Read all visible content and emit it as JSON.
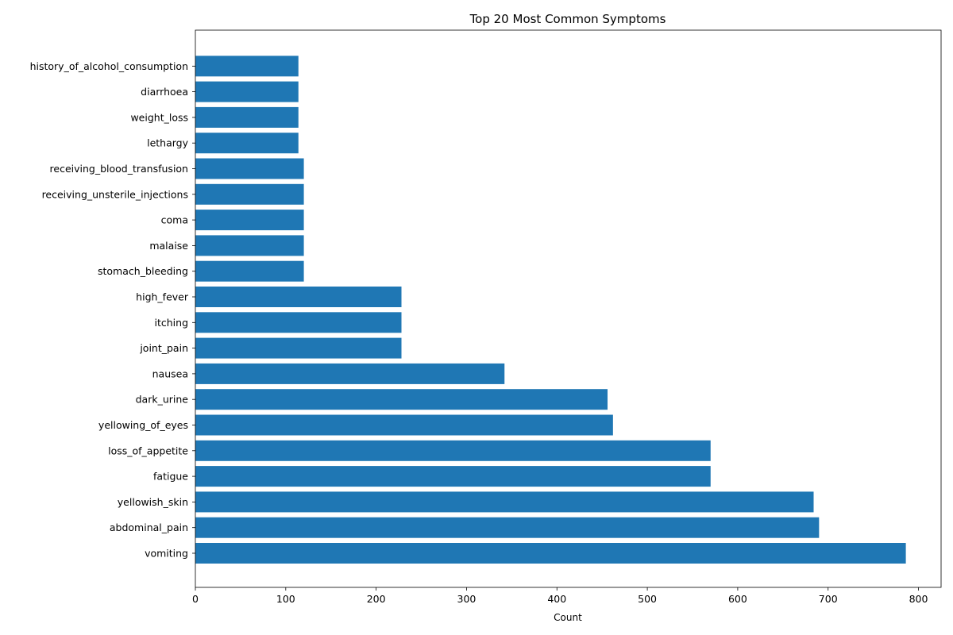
{
  "chart_data": {
    "type": "bar",
    "orientation": "horizontal",
    "title": "Top 20 Most Common Symptoms",
    "xlabel": "Count",
    "ylabel": "",
    "xlim": [
      0,
      825
    ],
    "xticks": [
      0,
      100,
      200,
      300,
      400,
      500,
      600,
      700,
      800
    ],
    "grid": false,
    "bar_color": "#1f77b4",
    "categories": [
      "vomiting",
      "abdominal_pain",
      "yellowish_skin",
      "fatigue",
      "loss_of_appetite",
      "yellowing_of_eyes",
      "dark_urine",
      "nausea",
      "joint_pain",
      "itching",
      "high_fever",
      "stomach_bleeding",
      "malaise",
      "coma",
      "receiving_unsterile_injections",
      "receiving_blood_transfusion",
      "lethargy",
      "weight_loss",
      "diarrhoea",
      "history_of_alcohol_consumption"
    ],
    "values": [
      786,
      690,
      684,
      570,
      570,
      462,
      456,
      342,
      228,
      228,
      228,
      120,
      120,
      120,
      120,
      120,
      114,
      114,
      114,
      114
    ]
  }
}
